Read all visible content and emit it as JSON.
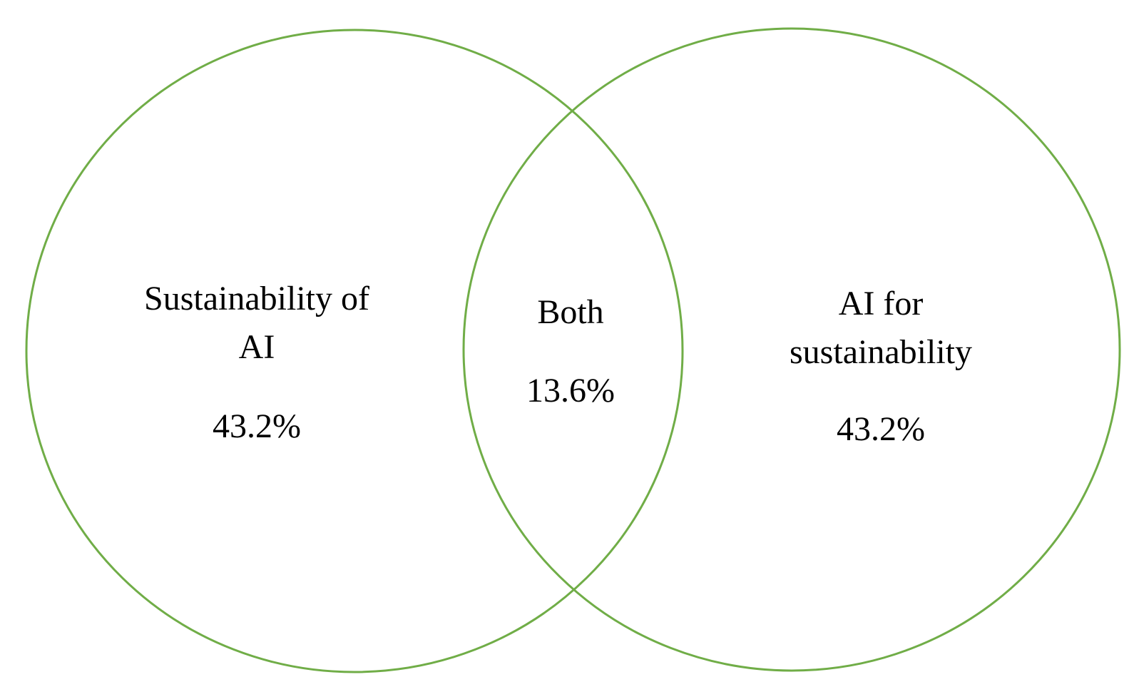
{
  "diagram": {
    "type": "venn",
    "stroke_color": "#70AD47",
    "sets": [
      {
        "id": "left",
        "label_line1": "Sustainability of",
        "label_line2": "AI",
        "value": "43.2%"
      },
      {
        "id": "overlap",
        "label_line1": "Both",
        "value": "13.6%"
      },
      {
        "id": "right",
        "label_line1": "AI for",
        "label_line2": "sustainability",
        "value": "43.2%"
      }
    ]
  }
}
